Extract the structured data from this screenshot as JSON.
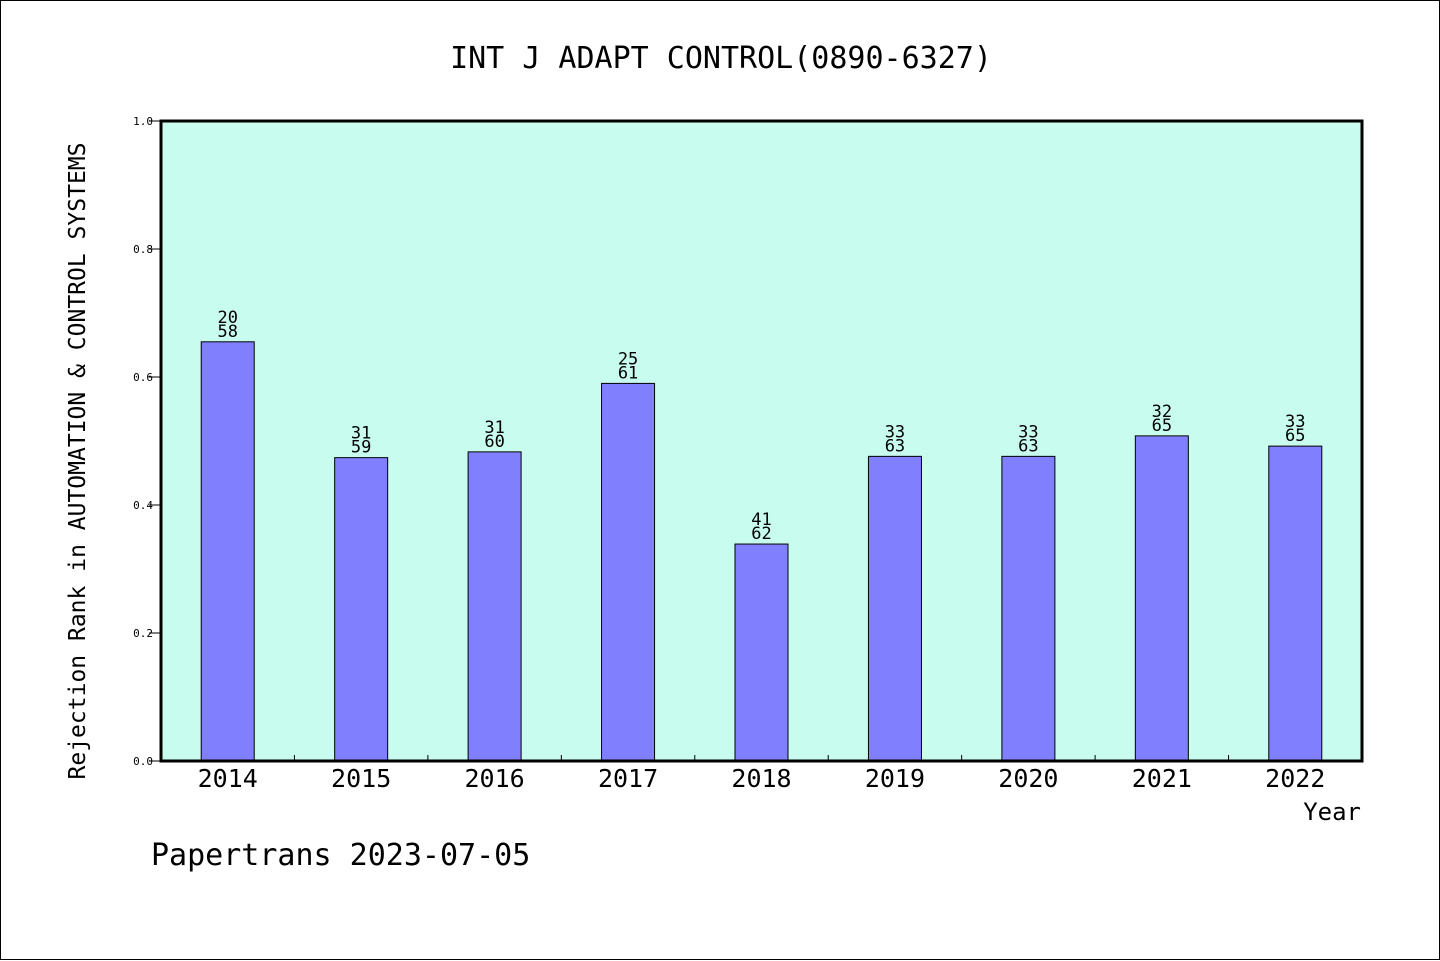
{
  "chart_data": {
    "type": "bar",
    "title": "INT J ADAPT CONTROL(0890-6327)",
    "xlabel": "Year",
    "ylabel": "Rejection Rank in AUTOMATION & CONTROL SYSTEMS",
    "footer": "Papertrans 2023-07-05",
    "categories": [
      "2014",
      "2015",
      "2016",
      "2017",
      "2018",
      "2019",
      "2020",
      "2021",
      "2022"
    ],
    "values": [
      0.655,
      0.474,
      0.483,
      0.59,
      0.339,
      0.476,
      0.476,
      0.508,
      0.492
    ],
    "label_top": [
      "20",
      "31",
      "31",
      "25",
      "41",
      "33",
      "33",
      "32",
      "33"
    ],
    "label_bottom": [
      "58",
      "59",
      "60",
      "61",
      "62",
      "63",
      "63",
      "65",
      "65"
    ],
    "ylim": [
      0,
      1.0
    ],
    "yticks": [
      "0.0",
      "0.2",
      "0.4",
      "0.6",
      "0.8",
      "1.0"
    ],
    "grid": false,
    "colors": {
      "plot_background": "#c8fcee",
      "bar_fill": "#8080ff",
      "bar_stroke": "#000000",
      "axis": "#000000"
    }
  }
}
